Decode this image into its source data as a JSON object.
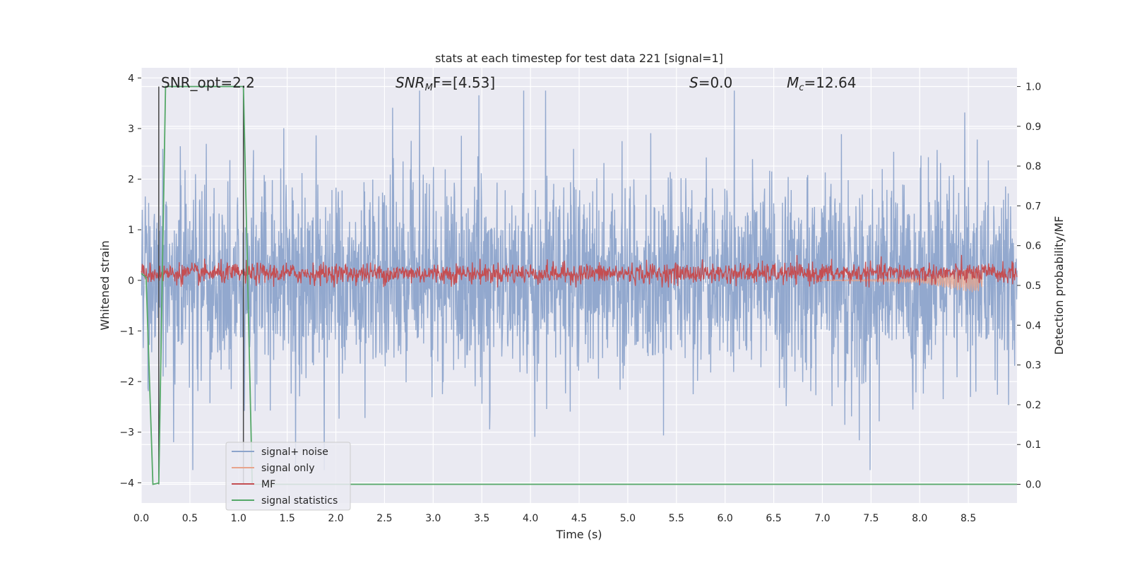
{
  "chart_data": {
    "type": "line",
    "title": "stats at each timestep for test data 221 [signal=1]",
    "xlabel": "Time (s)",
    "ylabel": "Whitened strain",
    "y2label": "Detection probability/MF",
    "xlim": [
      0,
      9.0
    ],
    "ylim": [
      -4.4,
      4.2
    ],
    "y2lim": [
      -0.047,
      1.047
    ],
    "xticks": [
      "0.0",
      "0.5",
      "1.0",
      "1.5",
      "2.0",
      "2.5",
      "3.0",
      "3.5",
      "4.0",
      "4.5",
      "5.0",
      "5.5",
      "6.0",
      "6.5",
      "7.0",
      "7.5",
      "8.0",
      "8.5"
    ],
    "yticks": [
      "4",
      "3",
      "2",
      "1",
      "0",
      "−1",
      "−2",
      "−3",
      "−4"
    ],
    "y2ticks": [
      "1.0",
      "0.9",
      "0.8",
      "0.7",
      "0.6",
      "0.5",
      "0.4",
      "0.3",
      "0.2",
      "0.1",
      "0.0"
    ],
    "grid": true,
    "legend_position": "lower-left",
    "annotations": {
      "snr_opt": "SNR_opt=2.2",
      "snr_mf_main": "SNR",
      "snr_mf_sub": "M",
      "snr_mf_rest": "F=[4.53]",
      "s_main": "S",
      "s_rest": "=0.0",
      "mc_main": "M",
      "mc_sub": "c",
      "mc_rest": "=12.64"
    },
    "series": [
      {
        "name": "signal+ noise",
        "color": "#8da4cb",
        "axis": "left",
        "description_values": {
          "x_range": [
            0,
            9.0
          ],
          "typical_range": [
            -2.0,
            2.0
          ],
          "max": 3.75,
          "min": -3.75
        }
      },
      {
        "name": "signal only",
        "color": "#e8a48c",
        "axis": "left",
        "points": [
          [
            6.9,
            0.0
          ],
          [
            7.5,
            0.02
          ],
          [
            8.0,
            0.05
          ],
          [
            8.4,
            0.2
          ],
          [
            8.6,
            0.25
          ],
          [
            8.65,
            -0.3
          ]
        ]
      },
      {
        "name": "MF",
        "color": "#c44e52",
        "axis": "right",
        "description_values": {
          "typical_range": [
            0.5,
            0.58
          ],
          "max": 0.6
        }
      },
      {
        "name": "signal statistics",
        "color": "#55a868",
        "axis": "right",
        "points": [
          [
            0.0,
            0.53
          ],
          [
            0.05,
            0.52
          ],
          [
            0.12,
            0.0
          ],
          [
            0.18,
            0.003
          ],
          [
            0.25,
            1.0
          ],
          [
            1.05,
            1.0
          ],
          [
            1.14,
            0.0
          ],
          [
            9.0,
            0.0
          ]
        ]
      }
    ]
  }
}
